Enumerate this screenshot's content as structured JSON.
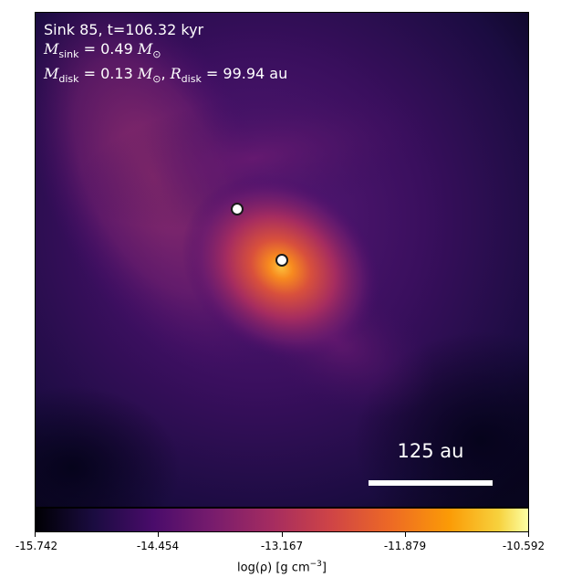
{
  "annotation": {
    "line1": "Sink 85, t=106.32 kyr",
    "m_sink_symbol": "M",
    "m_sink_sub": "sink",
    "m_sink_value": "= 0.49",
    "m_unit_symbol": "M",
    "m_unit_sub": "⊙",
    "m_disk_symbol": "M",
    "m_disk_sub": "disk",
    "m_disk_value": "= 0.13",
    "r_disk_symbol": "R",
    "r_disk_sub": "disk",
    "r_disk_value": "= 99.94",
    "r_disk_unit": "au"
  },
  "scalebar": {
    "label": "125 au"
  },
  "colorbar": {
    "colormap": "inferno",
    "ticks": [
      "-15.742",
      "-14.454",
      "-13.167",
      "-11.879",
      "-10.592"
    ],
    "label_prefix": "log(ρ) [g cm",
    "label_exp": "−3",
    "label_suffix": "]"
  },
  "colors": {
    "background": "#0b0722",
    "core": "#f5a623",
    "arm": "#8b2a6a"
  },
  "sinks_count": 2
}
